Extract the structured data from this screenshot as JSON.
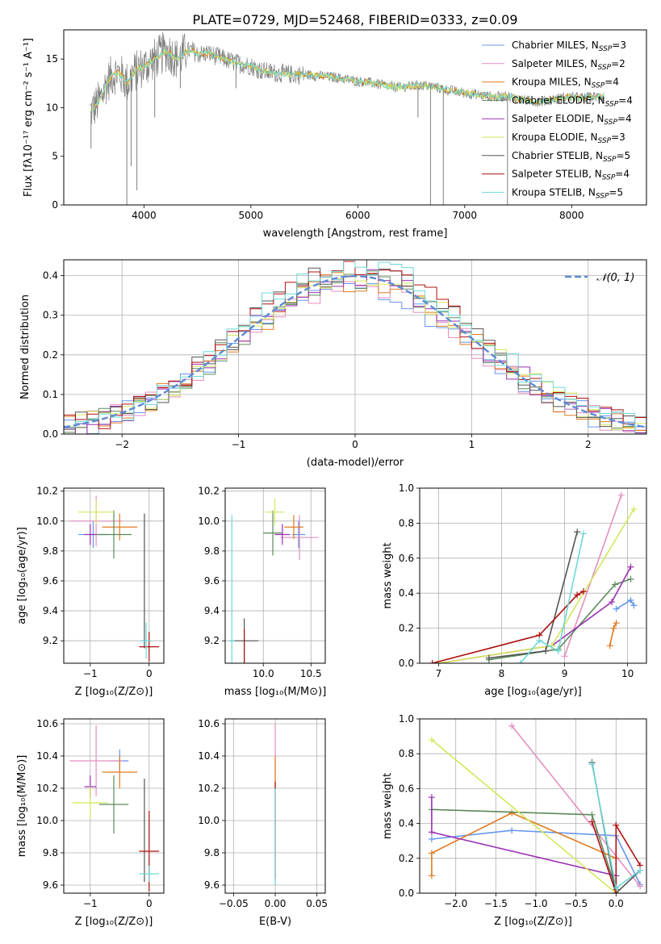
{
  "figure_title": "PLATE=0729, MJD=52468, FIBERID=0333, z=0.09",
  "legend_entries": [
    {
      "label": "Chabrier MILES, N",
      "sub": "SSP",
      "tail": "=3",
      "color": "#6495ed"
    },
    {
      "label": "Salpeter MILES, N",
      "sub": "SSP",
      "tail": "=2",
      "color": "#e58fbf"
    },
    {
      "label": "Kroupa MILES, N",
      "sub": "SSP",
      "tail": "=4",
      "color": "#e07b22"
    },
    {
      "label": "Chabrier ELODIE, N",
      "sub": "SSP",
      "tail": "=4",
      "color": "#5b8a5b"
    },
    {
      "label": "Salpeter ELODIE, N",
      "sub": "SSP",
      "tail": "=4",
      "color": "#9b30b0"
    },
    {
      "label": "Kroupa ELODIE, N",
      "sub": "SSP",
      "tail": "=3",
      "color": "#d4e75a"
    },
    {
      "label": "Chabrier STELIB, N",
      "sub": "SSP",
      "tail": "=5",
      "color": "#555555"
    },
    {
      "label": "Salpeter STELIB, N",
      "sub": "SSP",
      "tail": "=4",
      "color": "#b01010"
    },
    {
      "label": "Kroupa STELIB, N",
      "sub": "SSP",
      "tail": "=5",
      "color": "#6ed8d8"
    }
  ],
  "chart_data": [
    {
      "id": "spectrum",
      "type": "line",
      "xlabel": "wavelength [Angstrom, rest frame]",
      "ylabel": "Flux [fλ10⁻¹⁷ erg cm⁻² s⁻¹ A⁻¹]",
      "xlim": [
        3250,
        8700
      ],
      "ylim": [
        0,
        18
      ],
      "xticks": [
        4000,
        5000,
        6000,
        7000,
        8000
      ],
      "yticks": [
        0,
        5,
        10,
        15
      ],
      "data_color": "#808080",
      "model_color": "#6ed8d8",
      "data_points": [
        [
          3500,
          9.6
        ],
        [
          3550,
          10.2
        ],
        [
          3600,
          11.0
        ],
        [
          3650,
          12.5
        ],
        [
          3700,
          13.3
        ],
        [
          3750,
          13.6
        ],
        [
          3800,
          13.2
        ],
        [
          3850,
          12.5
        ],
        [
          3900,
          13.5
        ],
        [
          3950,
          14.0
        ],
        [
          4000,
          14.2
        ],
        [
          4050,
          14.6
        ],
        [
          4100,
          15.0
        ],
        [
          4150,
          15.4
        ],
        [
          4200,
          15.8
        ],
        [
          4250,
          15.6
        ],
        [
          4300,
          15.0
        ],
        [
          4350,
          15.3
        ],
        [
          4400,
          15.8
        ],
        [
          4450,
          15.9
        ],
        [
          4500,
          15.5
        ],
        [
          4600,
          15.6
        ],
        [
          4700,
          15.2
        ],
        [
          4800,
          14.8
        ],
        [
          4900,
          14.5
        ],
        [
          5000,
          14.3
        ],
        [
          5100,
          13.8
        ],
        [
          5200,
          13.6
        ],
        [
          5300,
          13.5
        ],
        [
          5400,
          13.4
        ],
        [
          5500,
          13.4
        ],
        [
          5600,
          13.3
        ],
        [
          5700,
          13.2
        ],
        [
          5800,
          13.1
        ],
        [
          5900,
          12.9
        ],
        [
          6000,
          12.7
        ],
        [
          6100,
          12.6
        ],
        [
          6200,
          12.4
        ],
        [
          6300,
          12.2
        ],
        [
          6400,
          12.1
        ],
        [
          6500,
          12.2
        ],
        [
          6600,
          12.3
        ],
        [
          6700,
          12.2
        ],
        [
          6800,
          11.9
        ],
        [
          6900,
          11.7
        ],
        [
          7000,
          11.5
        ],
        [
          7100,
          11.4
        ],
        [
          7200,
          11.2
        ],
        [
          7300,
          11.1
        ],
        [
          7400,
          11.2
        ],
        [
          7500,
          10.9
        ],
        [
          7600,
          10.7
        ],
        [
          7700,
          10.6
        ],
        [
          7800,
          10.8
        ],
        [
          7900,
          11.0
        ],
        [
          8000,
          11.1
        ],
        [
          8100,
          11.0
        ],
        [
          8200,
          11.1
        ],
        [
          8300,
          11.2
        ]
      ],
      "drops": [
        [
          3505,
          5.8
        ],
        [
          3840,
          0
        ],
        [
          3880,
          4.0
        ],
        [
          3934,
          1.5
        ],
        [
          4101,
          9.0
        ],
        [
          4340,
          12.0
        ],
        [
          4861,
          12.0
        ],
        [
          6563,
          9.0
        ],
        [
          6680,
          0
        ],
        [
          6800,
          0
        ],
        [
          7400,
          0
        ]
      ]
    },
    {
      "id": "residuals",
      "type": "histogram",
      "xlabel": "(data-model)/error",
      "ylabel": "Normed distribution",
      "xlim": [
        -2.5,
        2.5
      ],
      "ylim": [
        0,
        0.44
      ],
      "xticks": [
        -2,
        -1,
        0,
        1,
        2
      ],
      "yticks": [
        0.0,
        0.1,
        0.2,
        0.3,
        0.4
      ],
      "legend": "𝒩(0, 1)",
      "gaussian_color": "#5b8bd6",
      "bins_start": -2.5,
      "bin_width": 0.1
    },
    {
      "id": "age-vs-Z",
      "type": "errorbar",
      "xlabel": "Z [log₁₀(Z/Z⊙)]",
      "ylabel": "age  [log₁₀(age/yr)]",
      "xlim": [
        -1.45,
        0.25
      ],
      "ylim": [
        9.05,
        10.22
      ],
      "xticks": [
        -1,
        0
      ],
      "xticklabels": [
        "−1",
        "0"
      ],
      "yticks": [
        9.2,
        9.4,
        9.6,
        9.8,
        10.0,
        10.2
      ],
      "points": [
        {
          "x": -0.95,
          "y": 9.91,
          "xe": 0.25,
          "ye": 0.09,
          "c": 0
        },
        {
          "x": -0.9,
          "y": 10.0,
          "xe": 0.45,
          "ye": 0.17,
          "c": 1
        },
        {
          "x": -0.5,
          "y": 9.96,
          "xe": 0.3,
          "ye": 0.09,
          "c": 2
        },
        {
          "x": -0.6,
          "y": 9.91,
          "xe": 0.3,
          "ye": 0.16,
          "c": 3
        },
        {
          "x": -1.0,
          "y": 9.91,
          "xe": 0.1,
          "ye": 0.07,
          "c": 4
        },
        {
          "x": -0.9,
          "y": 10.06,
          "xe": 0.3,
          "ye": 0.08,
          "c": 5
        },
        {
          "x": -0.08,
          "y": 9.6,
          "xe": 0.0,
          "ye": 0.45,
          "c": 6
        },
        {
          "x": 0.0,
          "y": 9.16,
          "xe": 0.17,
          "ye": 0.1,
          "c": 7
        },
        {
          "x": -0.05,
          "y": 9.2,
          "xe": 0.1,
          "ye": 0.12,
          "c": 8
        }
      ]
    },
    {
      "id": "age-vs-mass",
      "type": "errorbar",
      "xlabel": "mass [log₁₀(M/M⊙)]",
      "ylabel": "",
      "xlim": [
        9.6,
        10.65
      ],
      "ylim": [
        9.05,
        10.22
      ],
      "xticks": [
        10.0,
        10.5
      ],
      "xticklabels": [
        "10.0",
        "10.5"
      ],
      "yticks": [
        9.2,
        9.4,
        9.6,
        9.8,
        10.0,
        10.2
      ],
      "points": [
        {
          "x": 10.37,
          "y": 9.91,
          "xe": 0.07,
          "ye": 0.09,
          "c": 0
        },
        {
          "x": 10.38,
          "y": 9.89,
          "xe": 0.2,
          "ye": 0.15,
          "c": 1
        },
        {
          "x": 10.32,
          "y": 9.96,
          "xe": 0.1,
          "ye": 0.08,
          "c": 2
        },
        {
          "x": 10.1,
          "y": 9.92,
          "xe": 0.1,
          "ye": 0.15,
          "c": 3
        },
        {
          "x": 10.2,
          "y": 9.91,
          "xe": 0.08,
          "ye": 0.07,
          "c": 4
        },
        {
          "x": 10.12,
          "y": 10.06,
          "xe": 0.1,
          "ye": 0.09,
          "c": 5
        },
        {
          "x": 9.8,
          "y": 9.2,
          "xe": 0.15,
          "ye": 0.15,
          "c": 6
        },
        {
          "x": 9.8,
          "y": 9.16,
          "xe": 0.0,
          "ye": 0.12,
          "c": 7
        },
        {
          "x": 9.67,
          "y": 9.2,
          "xe": 0.03,
          "ye": 0.84,
          "c": 8
        }
      ]
    },
    {
      "id": "weight-vs-age",
      "type": "line",
      "xlabel": "age  [log₁₀(age/yr)]",
      "ylabel": "mass weight",
      "xlim": [
        6.7,
        10.3
      ],
      "ylim": [
        0,
        1.0
      ],
      "xticks": [
        7,
        8,
        9,
        10
      ],
      "yticks": [
        0.0,
        0.2,
        0.4,
        0.6,
        0.8,
        1.0
      ],
      "series": [
        {
          "c": 0,
          "x": [
            9.82,
            10.05,
            10.1
          ],
          "y": [
            0.31,
            0.36,
            0.33
          ]
        },
        {
          "c": 1,
          "x": [
            9.0,
            9.9
          ],
          "y": [
            0.04,
            0.96
          ]
        },
        {
          "c": 2,
          "x": [
            9.72,
            9.78,
            9.82
          ],
          "y": [
            0.1,
            0.2,
            0.23
          ]
        },
        {
          "c": 3,
          "x": [
            7.8,
            8.9,
            9.8,
            10.05
          ],
          "y": [
            0.02,
            0.08,
            0.45,
            0.48
          ]
        },
        {
          "c": 4,
          "x": [
            7.0,
            8.8,
            9.75,
            10.05
          ],
          "y": [
            0.0,
            0.1,
            0.35,
            0.55
          ]
        },
        {
          "c": 5,
          "x": [
            7.0,
            8.8,
            10.1
          ],
          "y": [
            0.0,
            0.1,
            0.88
          ]
        },
        {
          "c": 6,
          "x": [
            7.8,
            8.7,
            9.2
          ],
          "y": [
            0.03,
            0.07,
            0.75
          ]
        },
        {
          "c": 7,
          "x": [
            6.9,
            8.6,
            9.2,
            9.3
          ],
          "y": [
            0.0,
            0.16,
            0.39,
            0.41
          ]
        },
        {
          "c": 8,
          "x": [
            8.3,
            8.6,
            8.9,
            9.3
          ],
          "y": [
            0.0,
            0.13,
            0.07,
            0.74
          ]
        }
      ]
    },
    {
      "id": "mass-vs-Z",
      "type": "errorbar",
      "xlabel": "Z [log₁₀(Z/Z⊙)]",
      "ylabel": "mass [log₁₀(M/M⊙)]",
      "xlim": [
        -1.45,
        0.25
      ],
      "ylim": [
        9.55,
        10.63
      ],
      "xticks": [
        -1,
        0
      ],
      "xticklabels": [
        "−1",
        "0"
      ],
      "yticks": [
        9.6,
        9.8,
        10.0,
        10.2,
        10.4,
        10.6
      ],
      "points": [
        {
          "x": -0.5,
          "y": 10.37,
          "xe": 0.15,
          "ye": 0.07,
          "c": 0
        },
        {
          "x": -0.9,
          "y": 10.37,
          "xe": 0.45,
          "ye": 0.22,
          "c": 1
        },
        {
          "x": -0.5,
          "y": 10.3,
          "xe": 0.3,
          "ye": 0.1,
          "c": 2
        },
        {
          "x": -0.6,
          "y": 10.1,
          "xe": 0.25,
          "ye": 0.18,
          "c": 3
        },
        {
          "x": -1.0,
          "y": 10.21,
          "xe": 0.1,
          "ye": 0.07,
          "c": 4
        },
        {
          "x": -1.0,
          "y": 10.11,
          "xe": 0.3,
          "ye": 0.1,
          "c": 5
        },
        {
          "x": -0.08,
          "y": 9.94,
          "xe": 0.0,
          "ye": 0.32,
          "c": 6
        },
        {
          "x": 0.0,
          "y": 9.81,
          "xe": 0.17,
          "ye": 0.25,
          "c": 7
        },
        {
          "x": 0.0,
          "y": 9.67,
          "xe": 0.17,
          "ye": 0.05,
          "c": 8
        }
      ]
    },
    {
      "id": "mass-vs-EBV",
      "type": "errorbar",
      "xlabel": "E(B-V)",
      "ylabel": "",
      "xlim": [
        -0.06,
        0.06
      ],
      "ylim": [
        9.55,
        10.63
      ],
      "xticks": [
        -0.05,
        0.0,
        0.05
      ],
      "xticklabels": [
        "−0.05",
        "0.00",
        "0.05"
      ],
      "yticks": [
        9.6,
        9.8,
        10.0,
        10.2,
        10.4,
        10.6
      ],
      "points": [
        {
          "x": 0.0,
          "y": 10.1,
          "xe": 0.0,
          "ye": 0.5,
          "c": 1
        },
        {
          "x": 0.0,
          "y": 10.3,
          "xe": 0.0,
          "ye": 0.1,
          "c": 2
        },
        {
          "x": 0.0,
          "y": 9.94,
          "xe": 0.0,
          "ye": 0.3,
          "c": 7
        },
        {
          "x": 0.0,
          "y": 9.9,
          "xe": 0.0,
          "ye": 0.3,
          "c": 8
        }
      ]
    },
    {
      "id": "weight-vs-Z",
      "type": "line",
      "xlabel": "Z [log₁₀(Z/Z⊙)]",
      "ylabel": "mass weight",
      "xlim": [
        -2.45,
        0.38
      ],
      "ylim": [
        0,
        1.0
      ],
      "xticks": [
        -2.0,
        -1.5,
        -1.0,
        -0.5,
        0.0
      ],
      "xticklabels": [
        "−2.0",
        "−1.5",
        "−1.0",
        "−0.5",
        "0.0"
      ],
      "yticks": [
        0.0,
        0.2,
        0.4,
        0.6,
        0.8,
        1.0
      ],
      "series": [
        {
          "c": 0,
          "x": [
            -2.3,
            -1.3,
            0.0,
            0.3
          ],
          "y": [
            0.31,
            0.36,
            0.33,
            0.05
          ]
        },
        {
          "c": 1,
          "x": [
            -1.3,
            0.3
          ],
          "y": [
            0.96,
            0.04
          ]
        },
        {
          "c": 2,
          "x": [
            -2.3,
            -2.3,
            -1.3,
            0.0
          ],
          "y": [
            0.1,
            0.23,
            0.46,
            0.2
          ]
        },
        {
          "c": 3,
          "x": [
            -2.3,
            -0.3,
            0.0
          ],
          "y": [
            0.48,
            0.45,
            0.02
          ]
        },
        {
          "c": 4,
          "x": [
            -2.3,
            -2.3,
            0.0
          ],
          "y": [
            0.55,
            0.35,
            0.1
          ]
        },
        {
          "c": 5,
          "x": [
            -2.3,
            0.0
          ],
          "y": [
            0.88,
            0.0
          ]
        },
        {
          "c": 6,
          "x": [
            -0.3,
            0.0,
            0.3
          ],
          "y": [
            0.75,
            0.0,
            0.13
          ]
        },
        {
          "c": 7,
          "x": [
            -0.3,
            0.0,
            0.0,
            0.3
          ],
          "y": [
            0.41,
            0.0,
            0.39,
            0.16
          ]
        },
        {
          "c": 8,
          "x": [
            -0.3,
            0.0,
            0.3
          ],
          "y": [
            0.74,
            0.03,
            0.13
          ]
        }
      ]
    }
  ]
}
